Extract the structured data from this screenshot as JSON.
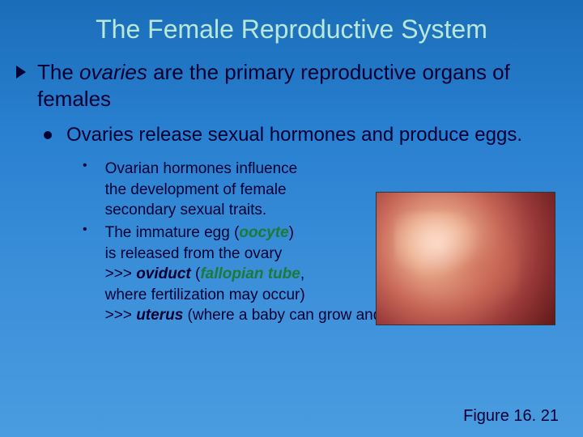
{
  "title": "The Female Reproductive System",
  "level1": {
    "prefix": "The ",
    "emph": "ovaries",
    "suffix": " are the primary reproductive organs of females"
  },
  "level2": "Ovaries release sexual hormones and produce eggs.",
  "level3a": {
    "l1": "Ovarian hormones influence",
    "l2": "the development of female",
    "l3": "secondary sexual traits."
  },
  "level3b": {
    "l1a": "The immature egg (",
    "l1term": "oocyte",
    "l1b": ")",
    "l2": "is released from the ovary",
    "l3a": ">>> ",
    "l3term1": "oviduct",
    "l3b": " (",
    "l3term2": "fallopian tube",
    "l3c": ",",
    "l4": "where fertilization may occur)",
    "l5a": ">>> ",
    "l5term": "uterus",
    "l5b": " (where a baby can grow and develop)."
  },
  "figure_caption": "Figure 16. 21",
  "colors": {
    "title_color": "#b8e8d8",
    "body_color": "#000033",
    "term_green": "#1a7a3a"
  }
}
